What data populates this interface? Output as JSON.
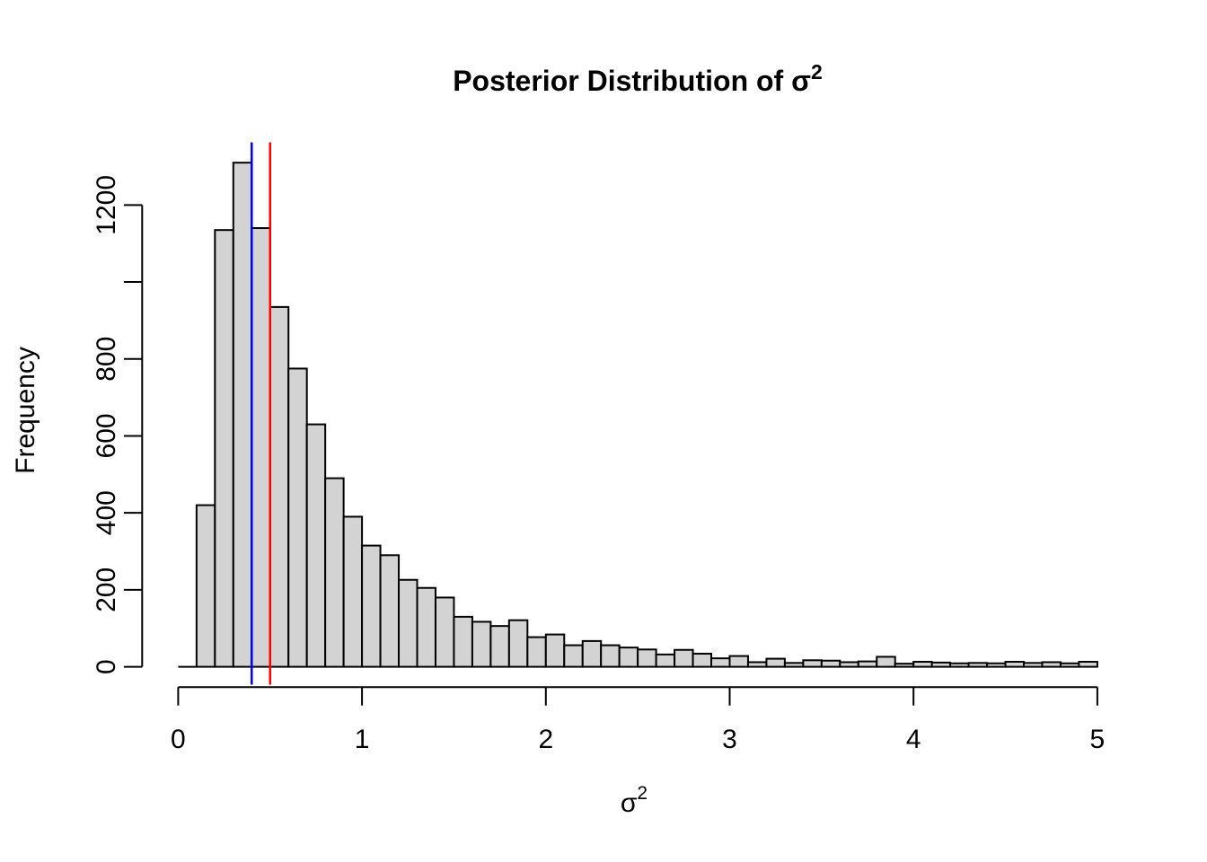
{
  "chart": {
    "title_main": "Posterior Distribution of σ",
    "title_sup": "2",
    "x_label_main": "σ",
    "x_label_sup": "2",
    "y_label": "Frequency"
  },
  "chart_data": {
    "type": "bar",
    "subtype": "histogram",
    "title": "Posterior Distribution of σ²",
    "xlabel": "σ²",
    "ylabel": "Frequency",
    "xlim": [
      0,
      5
    ],
    "ylim": [
      0,
      1310
    ],
    "grid": false,
    "legend": "none",
    "bin_start": 0.0,
    "bin_width": 0.1,
    "counts": [
      0,
      420,
      1135,
      1310,
      1140,
      935,
      775,
      630,
      490,
      390,
      315,
      290,
      226,
      205,
      180,
      130,
      117,
      106,
      121,
      77,
      84,
      56,
      67,
      56,
      50,
      45,
      32,
      44,
      34,
      22,
      28,
      12,
      21,
      10,
      17,
      16,
      12,
      14,
      26,
      8,
      13,
      11,
      9,
      10,
      9,
      13,
      10,
      12,
      9,
      13
    ],
    "x_ticks": [
      0,
      1,
      2,
      3,
      4,
      5
    ],
    "x_tick_labels": [
      "0",
      "1",
      "2",
      "3",
      "4",
      "5"
    ],
    "y_ticks": [
      0,
      200,
      400,
      600,
      800,
      1000,
      1200
    ],
    "y_tick_labels_shown": [
      "0",
      "200",
      "400",
      "600",
      "800",
      "1200"
    ],
    "vlines": [
      {
        "x": 0.4,
        "color": "#0000FF",
        "name": "vline-blue"
      },
      {
        "x": 0.5,
        "color": "#FF0000",
        "name": "vline-red"
      }
    ],
    "bar_fill": "#D3D3D3",
    "bar_stroke": "#000000",
    "axis_color": "#000000",
    "background": "#FFFFFF"
  }
}
